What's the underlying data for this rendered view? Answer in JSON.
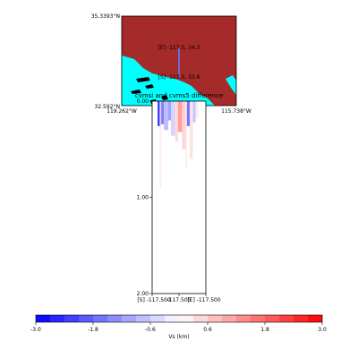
{
  "map": {
    "lat_max_label": "35.3393°N",
    "lat_min_label": "32.592°N",
    "lon_min_label": "119.262°W",
    "lon_max_label": "115.738°W",
    "point_e_label": "[E] -117.5, 34.3",
    "point_s_label": "[S] -117.5, 33.6",
    "land_color": "#a52a2a",
    "water_color": "#00ffff",
    "profile_line_color": "#6b6bd6"
  },
  "chart_data": {
    "type": "heatmap",
    "title": "cvmsi and cvms5 difference",
    "x_tick_labels": [
      "[S] -117.500",
      "-117.500",
      "[E] -117.500"
    ],
    "y_tick_labels": [
      "0.00",
      "1.00",
      "2.00"
    ],
    "ylim": [
      2.0,
      0.0
    ],
    "colorbar": {
      "label": "Vs (km)",
      "range": [
        -3.0,
        3.0
      ],
      "ticks": [
        "-3.0",
        "-1.8",
        "-0.6",
        "0.6",
        "1.8",
        "3.0"
      ],
      "colormap": "bwr"
    },
    "strips": [
      {
        "x": 0.1,
        "w": 0.06,
        "depth": 0.26,
        "value": -2.6
      },
      {
        "x": 0.16,
        "w": 0.06,
        "depth": 0.24,
        "value": -1.8
      },
      {
        "x": 0.22,
        "w": 0.08,
        "depth": 0.3,
        "value": -0.9
      },
      {
        "x": 0.3,
        "w": 0.05,
        "depth": 0.2,
        "value": -1.3
      },
      {
        "x": 0.35,
        "w": 0.08,
        "depth": 0.36,
        "value": -0.6
      },
      {
        "x": 0.43,
        "w": 0.05,
        "depth": 0.42,
        "value": 0.5
      },
      {
        "x": 0.48,
        "w": 0.08,
        "depth": 0.32,
        "value": 1.3
      },
      {
        "x": 0.56,
        "w": 0.07,
        "depth": 0.5,
        "value": 0.6
      },
      {
        "x": 0.63,
        "w": 0.07,
        "depth": 0.26,
        "value": -1.9
      },
      {
        "x": 0.7,
        "w": 0.06,
        "depth": 0.6,
        "value": 0.4
      },
      {
        "x": 0.76,
        "w": 0.05,
        "depth": 0.22,
        "value": -0.8
      },
      {
        "x": 0.81,
        "w": 0.05,
        "depth": 0.18,
        "value": 0.3
      },
      {
        "x": 0.14,
        "w": 0.03,
        "depth": 0.9,
        "value": 0.3
      },
      {
        "x": 0.62,
        "w": 0.03,
        "depth": 0.7,
        "value": 0.3
      }
    ]
  }
}
